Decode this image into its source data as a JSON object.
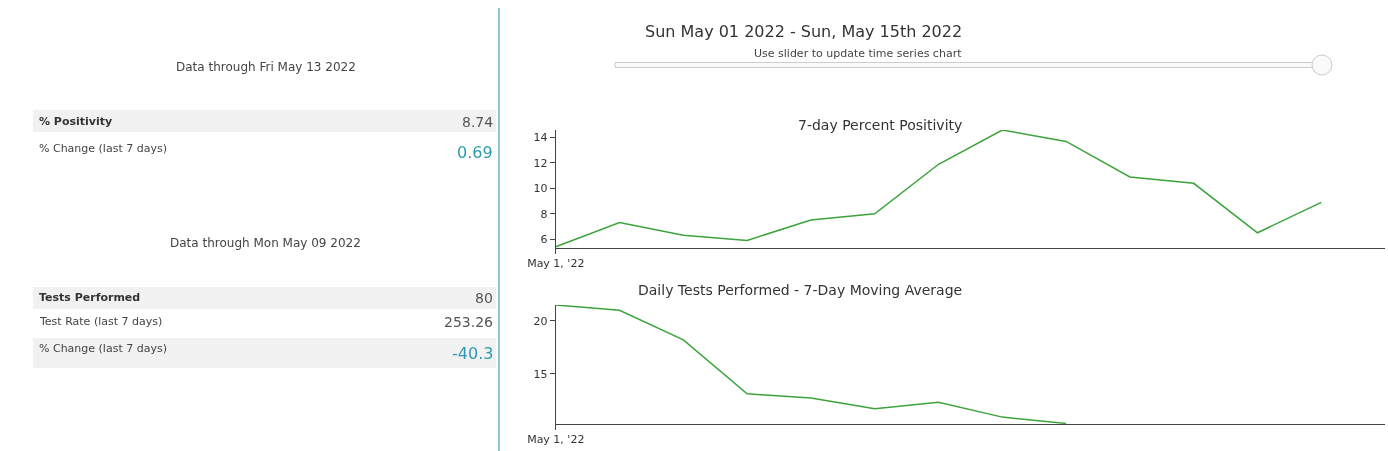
{
  "chart_data": [
    {
      "type": "line",
      "title": "7-day Percent Positivity",
      "categories": [
        "May 1, '22",
        null,
        null,
        null,
        null,
        null,
        null,
        null,
        null,
        null,
        null,
        null,
        null,
        null
      ],
      "series": [
        {
          "color": "#3ca33c",
          "values": [
            5.4,
            7.3,
            6.3,
            5.9,
            7.5,
            8.0,
            11.9,
            14.6,
            13.7,
            10.9,
            10.4,
            6.5,
            8.9,
            null
          ]
        }
      ],
      "ylim": [
        5.3,
        14.6
      ],
      "yticks": [
        6,
        8,
        10,
        12,
        14
      ],
      "marker": "none",
      "line_style": "solid"
    },
    {
      "type": "line",
      "title": "Daily Tests Performed - 7-Day Moving Average",
      "categories": [
        "May 1, '22",
        null,
        null,
        null,
        null,
        null,
        null,
        null,
        null,
        null,
        null,
        null,
        null,
        null
      ],
      "series": [
        {
          "color": "#3ca33c",
          "values": [
            21.5,
            21.0,
            18.2,
            13.1,
            12.7,
            11.7,
            12.3,
            10.9,
            10.3,
            null,
            null,
            null,
            null,
            null
          ]
        }
      ],
      "ylim": [
        10.25,
        21.5
      ],
      "yticks": [
        15,
        20
      ],
      "marker": "none",
      "line_style": "solid"
    },
    {
      "type": "other",
      "annotations": [
        "Data through Fri May 13 2022",
        "% Positivity",
        "8.74",
        "% Change (last 7 days)",
        "0.69",
        "Data through Mon May 09 2022",
        "Tests Performed",
        "80",
        "Test Rate (last 7 days)",
        "253.26",
        "% Change (last 7 days)",
        "-40.3"
      ]
    },
    {
      "type": "other",
      "title": "Sun May 01 2022 - Sun, May 15th 2022",
      "subtitle": "Use slider to update time series chart"
    }
  ]
}
